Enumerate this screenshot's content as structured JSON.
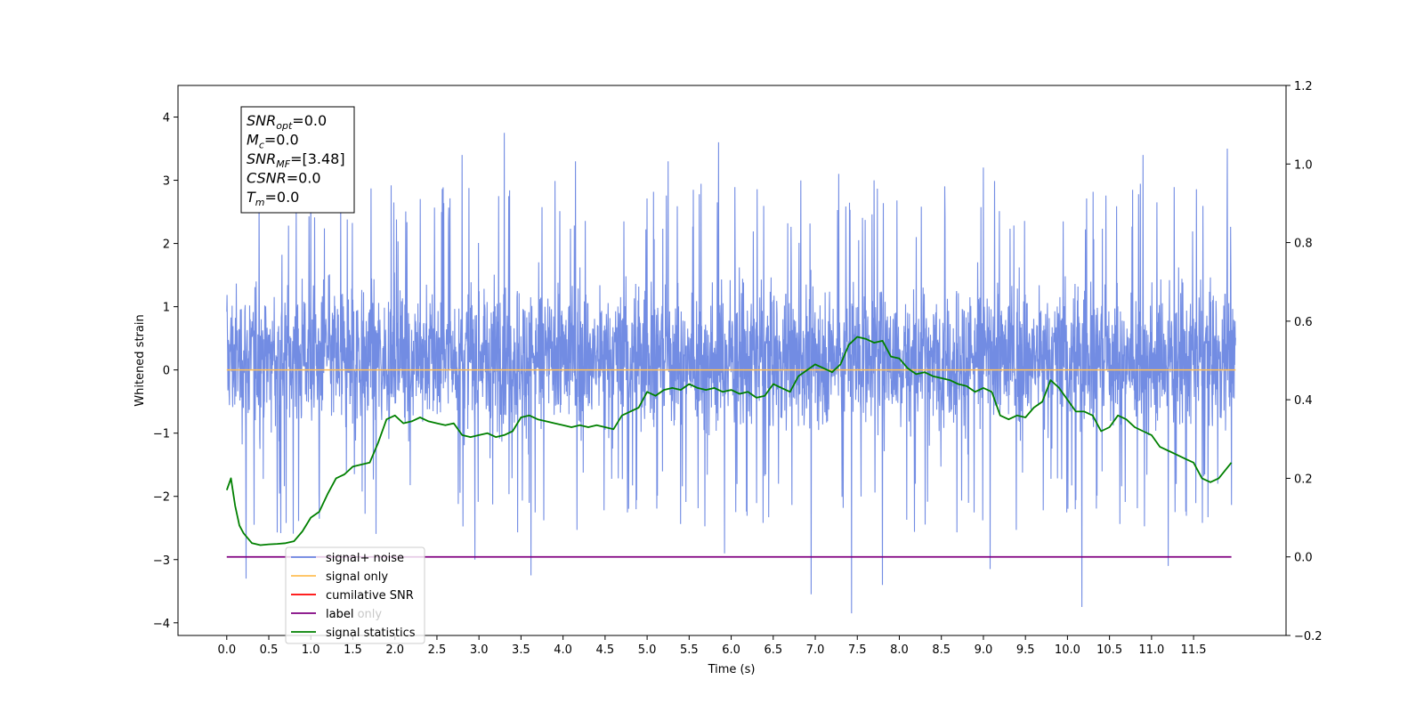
{
  "chart_data": {
    "type": "line",
    "xlabel": "Time (s)",
    "ylabel": "Whitened strain",
    "xlim": [
      -0.58,
      12.6
    ],
    "ylim": [
      -4.2,
      4.5
    ],
    "y2lim": [
      -0.2,
      1.2
    ],
    "x_ticks": [
      "0.0",
      "0.5",
      "1.0",
      "1.5",
      "2.0",
      "2.5",
      "3.0",
      "3.5",
      "4.0",
      "4.5",
      "5.0",
      "5.5",
      "6.0",
      "6.5",
      "7.0",
      "7.5",
      "8.0",
      "8.5",
      "9.0",
      "9.5",
      "10.0",
      "10.5",
      "11.0",
      "11.5"
    ],
    "y_ticks": [
      "−4",
      "−3",
      "−2",
      "−1",
      "0",
      "1",
      "2",
      "3",
      "4"
    ],
    "y2_ticks": [
      "−0.2",
      "0.0",
      "0.2",
      "0.4",
      "0.6",
      "0.8",
      "1.0",
      "1.2"
    ],
    "annotation": {
      "lines": [
        {
          "base": "SNR",
          "sub": "opt",
          "value": "=0.0"
        },
        {
          "base": "M",
          "sub": "c",
          "value": "=0.0"
        },
        {
          "base": "SNR",
          "sub": "MF",
          "value": "=[3.48]"
        },
        {
          "base": "CSNR",
          "sub": "",
          "value": "=0.0"
        },
        {
          "base": "T",
          "sub": "m",
          "value": "=0.0"
        }
      ]
    },
    "legend": {
      "placement": "lower-left",
      "entries": [
        {
          "label": "signal+ noise",
          "color": "#6a86e2"
        },
        {
          "label": "signal only",
          "color": "#ffbf56"
        },
        {
          "label": "cumilative SNR",
          "color": "#ff0000"
        },
        {
          "label": "label",
          "color": "#800080"
        },
        {
          "label": "signal statistics",
          "color": "#008000"
        }
      ],
      "ghost_text": "label only"
    },
    "series": [
      {
        "name": "signal+ noise",
        "axis": "left",
        "color": "#6a86e2",
        "note_display": "dense noise trace",
        "x_range": [
          0.0,
          12.0
        ],
        "typical_range": [
          -1.8,
          2.2
        ],
        "spikes": [
          {
            "x": 0.23,
            "y": -3.3
          },
          {
            "x": 1.0,
            "y": 3.1
          },
          {
            "x": 2.8,
            "y": 3.4
          },
          {
            "x": 2.95,
            "y": -3.0
          },
          {
            "x": 3.3,
            "y": 3.75
          },
          {
            "x": 3.62,
            "y": -3.25
          },
          {
            "x": 4.15,
            "y": 3.3
          },
          {
            "x": 5.25,
            "y": 3.3
          },
          {
            "x": 5.85,
            "y": 3.6
          },
          {
            "x": 5.92,
            "y": -2.9
          },
          {
            "x": 6.95,
            "y": -3.55
          },
          {
            "x": 7.28,
            "y": 3.1
          },
          {
            "x": 7.43,
            "y": -3.85
          },
          {
            "x": 7.7,
            "y": 3.0
          },
          {
            "x": 7.8,
            "y": -3.4
          },
          {
            "x": 9.0,
            "y": 3.2
          },
          {
            "x": 9.08,
            "y": -3.15
          },
          {
            "x": 10.17,
            "y": -3.75
          },
          {
            "x": 10.9,
            "y": 3.4
          },
          {
            "x": 11.2,
            "y": -3.1
          },
          {
            "x": 11.9,
            "y": 3.5
          }
        ]
      },
      {
        "name": "signal only",
        "axis": "left",
        "color": "#ffbf56",
        "x": [
          0.0,
          12.0
        ],
        "y": [
          0.0,
          0.0
        ]
      },
      {
        "name": "label",
        "axis": "right",
        "color": "#800080",
        "x": [
          0.0,
          11.95
        ],
        "y": [
          0.0,
          0.0
        ]
      },
      {
        "name": "signal statistics",
        "axis": "right",
        "color": "#008000",
        "x": [
          0.0,
          0.05,
          0.1,
          0.15,
          0.2,
          0.3,
          0.4,
          0.5,
          0.6,
          0.7,
          0.8,
          0.9,
          1.0,
          1.1,
          1.2,
          1.3,
          1.4,
          1.5,
          1.6,
          1.7,
          1.8,
          1.9,
          2.0,
          2.1,
          2.2,
          2.3,
          2.4,
          2.5,
          2.6,
          2.7,
          2.8,
          2.9,
          3.0,
          3.1,
          3.2,
          3.3,
          3.4,
          3.5,
          3.6,
          3.7,
          3.8,
          3.9,
          4.0,
          4.1,
          4.2,
          4.3,
          4.4,
          4.5,
          4.6,
          4.7,
          4.8,
          4.9,
          5.0,
          5.1,
          5.2,
          5.3,
          5.4,
          5.5,
          5.6,
          5.7,
          5.8,
          5.9,
          6.0,
          6.1,
          6.2,
          6.3,
          6.4,
          6.5,
          6.6,
          6.7,
          6.8,
          6.9,
          7.0,
          7.1,
          7.2,
          7.3,
          7.4,
          7.5,
          7.6,
          7.7,
          7.8,
          7.9,
          8.0,
          8.1,
          8.2,
          8.3,
          8.4,
          8.5,
          8.6,
          8.7,
          8.8,
          8.9,
          9.0,
          9.1,
          9.2,
          9.3,
          9.4,
          9.5,
          9.6,
          9.7,
          9.8,
          9.9,
          10.0,
          10.1,
          10.2,
          10.3,
          10.4,
          10.5,
          10.6,
          10.7,
          10.8,
          10.9,
          11.0,
          11.1,
          11.2,
          11.3,
          11.4,
          11.5,
          11.6,
          11.7,
          11.8,
          11.95
        ],
        "y": [
          0.17,
          0.2,
          0.13,
          0.08,
          0.06,
          0.035,
          0.03,
          0.032,
          0.033,
          0.035,
          0.04,
          0.065,
          0.1,
          0.115,
          0.16,
          0.2,
          0.21,
          0.23,
          0.235,
          0.24,
          0.29,
          0.35,
          0.36,
          0.34,
          0.345,
          0.355,
          0.345,
          0.34,
          0.335,
          0.34,
          0.31,
          0.305,
          0.31,
          0.315,
          0.305,
          0.31,
          0.32,
          0.355,
          0.36,
          0.35,
          0.345,
          0.34,
          0.335,
          0.33,
          0.335,
          0.33,
          0.335,
          0.33,
          0.325,
          0.36,
          0.37,
          0.38,
          0.42,
          0.41,
          0.425,
          0.43,
          0.425,
          0.44,
          0.43,
          0.425,
          0.43,
          0.42,
          0.425,
          0.415,
          0.42,
          0.405,
          0.41,
          0.44,
          0.43,
          0.42,
          0.46,
          0.475,
          0.49,
          0.48,
          0.47,
          0.49,
          0.54,
          0.56,
          0.555,
          0.545,
          0.55,
          0.51,
          0.505,
          0.48,
          0.465,
          0.47,
          0.46,
          0.455,
          0.45,
          0.44,
          0.435,
          0.42,
          0.43,
          0.42,
          0.36,
          0.35,
          0.36,
          0.355,
          0.38,
          0.395,
          0.45,
          0.43,
          0.4,
          0.37,
          0.37,
          0.36,
          0.32,
          0.33,
          0.36,
          0.35,
          0.33,
          0.32,
          0.31,
          0.28,
          0.27,
          0.26,
          0.25,
          0.24,
          0.2,
          0.19,
          0.2,
          0.24
        ]
      }
    ]
  }
}
